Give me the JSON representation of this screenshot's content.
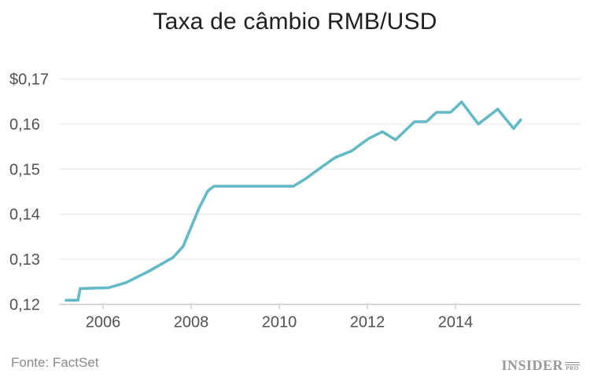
{
  "title": "Taxa de câmbio RMB/USD",
  "source": "Fonte: FactSet",
  "logo": {
    "name": "INSIDER",
    "suffix": "PRO"
  },
  "colors": {
    "background": "#ffffff",
    "line": "#63b9c6",
    "grid": "#ededef",
    "axis": "#c7c8ca",
    "title_text": "#202022",
    "tick_text": "#505153",
    "source_text": "#88898b",
    "logo": "#97989b"
  },
  "chart_data": {
    "type": "line",
    "title": "Taxa de câmbio RMB/USD",
    "xlabel": "",
    "ylabel": "",
    "x_range": [
      2005,
      2016.84
    ],
    "y_range": [
      0.12,
      0.17
    ],
    "x_ticks": [
      2006,
      2008,
      2010,
      2012,
      2014
    ],
    "x_tick_labels": [
      "2006",
      "2008",
      "2010",
      "2012",
      "2014"
    ],
    "y_ticks": [
      0.17,
      0.16,
      0.15,
      0.14,
      0.13,
      0.12
    ],
    "y_tick_labels": [
      "$0,17",
      "0,16",
      "0,15",
      "0,14",
      "0,13",
      "0,12"
    ],
    "grid": "horizontal-only",
    "legend": "none",
    "source": "Fonte: FactSet",
    "series": [
      {
        "name": "RMB/USD",
        "points": [
          [
            2005.16,
            0.1209
          ],
          [
            2005.43,
            0.1209
          ],
          [
            2005.48,
            0.1235
          ],
          [
            2006.13,
            0.1237
          ],
          [
            2006.52,
            0.1248
          ],
          [
            2007.05,
            0.1274
          ],
          [
            2007.59,
            0.1304
          ],
          [
            2007.82,
            0.1329
          ],
          [
            2008.18,
            0.1414
          ],
          [
            2008.38,
            0.1452
          ],
          [
            2008.52,
            0.1462
          ],
          [
            2010.32,
            0.1462
          ],
          [
            2010.59,
            0.1478
          ],
          [
            2010.98,
            0.1506
          ],
          [
            2011.2,
            0.1521
          ],
          [
            2011.3,
            0.1527
          ],
          [
            2011.64,
            0.154
          ],
          [
            2011.93,
            0.1561
          ],
          [
            2012.02,
            0.1567
          ],
          [
            2012.34,
            0.1583
          ],
          [
            2012.64,
            0.1565
          ],
          [
            2013.07,
            0.1605
          ],
          [
            2013.34,
            0.1605
          ],
          [
            2013.57,
            0.1626
          ],
          [
            2013.89,
            0.1626
          ],
          [
            2014.14,
            0.1649
          ],
          [
            2014.52,
            0.16
          ],
          [
            2014.96,
            0.1633
          ],
          [
            2015.32,
            0.159
          ],
          [
            2015.48,
            0.1609
          ]
        ]
      }
    ]
  }
}
